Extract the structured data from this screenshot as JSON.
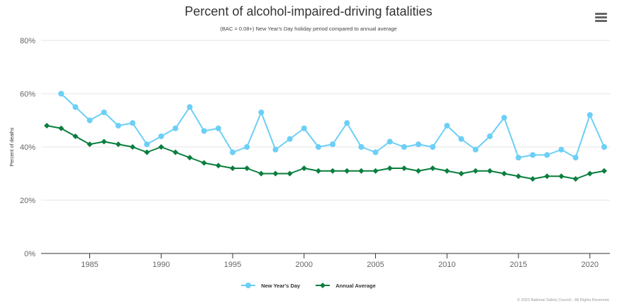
{
  "header": {
    "title": "Percent of alcohol-impaired-driving fatalities",
    "subtitle": "(BAC = 0.08+) New Year's Day holiday period compared to annual average",
    "menu_icon": "hamburger-menu-icon"
  },
  "credits": "© 2023 National Safety Council - All Rights Reserved.",
  "chart_data": {
    "type": "line",
    "title": "Percent of alcohol-impaired-driving fatalities",
    "subtitle": "(BAC = 0.08+) New Year's Day holiday period compared to annual average",
    "xlabel": "",
    "ylabel": "Percent of deaths",
    "xlim": [
      1981.6,
      2021.4
    ],
    "ylim": [
      0,
      80
    ],
    "yticks": [
      0,
      20,
      40,
      60,
      80
    ],
    "ytick_labels": [
      "0%",
      "20%",
      "40%",
      "60%",
      "80%"
    ],
    "xticks": [
      1985,
      1990,
      1995,
      2000,
      2005,
      2010,
      2015,
      2020
    ],
    "xtick_labels": [
      "1985",
      "1990",
      "1995",
      "2000",
      "2005",
      "2010",
      "2015",
      "2020"
    ],
    "grid": "horizontal",
    "legend_position": "bottom-center",
    "series": [
      {
        "name": "New Year's Day",
        "color": "#6ccff6",
        "marker": "circle",
        "x": [
          1983,
          1984,
          1985,
          1986,
          1987,
          1988,
          1989,
          1990,
          1991,
          1992,
          1993,
          1994,
          1995,
          1996,
          1997,
          1998,
          1999,
          2000,
          2001,
          2002,
          2003,
          2004,
          2005,
          2006,
          2007,
          2008,
          2009,
          2010,
          2011,
          2012,
          2013,
          2014,
          2015,
          2016,
          2017,
          2018,
          2019,
          2020,
          2021
        ],
        "values": [
          60,
          55,
          50,
          53,
          48,
          49,
          41,
          44,
          47,
          55,
          46,
          47,
          38,
          40,
          53,
          39,
          43,
          47,
          40,
          41,
          49,
          40,
          38,
          42,
          40,
          41,
          40,
          48,
          43,
          39,
          44,
          51,
          36,
          37,
          37,
          39,
          36,
          52,
          40
        ]
      },
      {
        "name": "Annual Average",
        "color": "#0a7e3e",
        "marker": "diamond",
        "x": [
          1982,
          1983,
          1984,
          1985,
          1986,
          1987,
          1988,
          1989,
          1990,
          1991,
          1992,
          1993,
          1994,
          1995,
          1996,
          1997,
          1998,
          1999,
          2000,
          2001,
          2002,
          2003,
          2004,
          2005,
          2006,
          2007,
          2008,
          2009,
          2010,
          2011,
          2012,
          2013,
          2014,
          2015,
          2016,
          2017,
          2018,
          2019,
          2020,
          2021
        ],
        "values": [
          48,
          47,
          44,
          41,
          42,
          41,
          40,
          38,
          40,
          38,
          36,
          34,
          33,
          32,
          32,
          30,
          30,
          30,
          32,
          31,
          31,
          31,
          31,
          31,
          32,
          32,
          31,
          32,
          31,
          30,
          31,
          31,
          30,
          29,
          28,
          29,
          29,
          28,
          30,
          31
        ]
      }
    ]
  }
}
